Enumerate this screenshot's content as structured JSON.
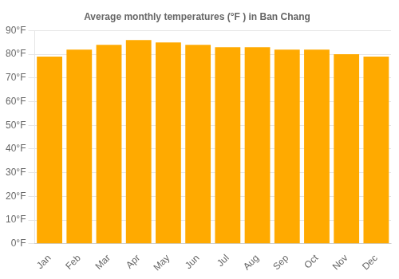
{
  "chart_data": {
    "type": "bar",
    "title": "Average monthly temperatures (°F ) in Ban Chang",
    "categories": [
      "Jan",
      "Feb",
      "Mar",
      "Apr",
      "May",
      "Jun",
      "Jul",
      "Aug",
      "Sep",
      "Oct",
      "Nov",
      "Dec"
    ],
    "values": [
      79,
      82,
      84,
      86,
      85,
      84,
      83,
      83,
      82,
      82,
      80,
      79
    ],
    "color": "#FFAA00",
    "ylim": [
      0,
      90
    ],
    "yticks": [
      {
        "value": 0,
        "label": "0°F"
      },
      {
        "value": 10,
        "label": "10°F"
      },
      {
        "value": 20,
        "label": "20°F"
      },
      {
        "value": 30,
        "label": "30°F"
      },
      {
        "value": 40,
        "label": "40°F"
      },
      {
        "value": 50,
        "label": "50°F"
      },
      {
        "value": 60,
        "label": "60°F"
      },
      {
        "value": 70,
        "label": "70°F"
      },
      {
        "value": 80,
        "label": "80°F"
      },
      {
        "value": 90,
        "label": "90°F"
      }
    ],
    "grid": true
  }
}
